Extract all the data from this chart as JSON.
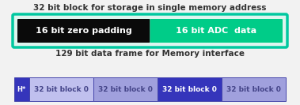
{
  "title1": "32 bit block for storage in single memory address",
  "title2": "129 bit data frame for Memory interface",
  "block1_left_label": "16 bit zero padding",
  "block1_right_label": "16 bit ADC  data",
  "block1_border_color": "#00c8a0",
  "block1_inner_bg": "#ddf5ef",
  "block1_left_color": "#0a0a0a",
  "block1_right_color": "#00cc88",
  "block1_text_color": "#ffffff",
  "row2_cells": [
    "H*",
    "32 bit block 0",
    "32 bit block 0",
    "32 bit block 0",
    "32 bit block 0"
  ],
  "row2_colors": [
    "#3535bb",
    "#c0c0ee",
    "#a0a0dd",
    "#3535bb",
    "#a0a0dd"
  ],
  "row2_text_colors": [
    "#ffffff",
    "#444488",
    "#444488",
    "#ffffff",
    "#444488"
  ],
  "row2_border_color": "#4444aa",
  "title_fontsize": 7.5,
  "cell_fontsize": 6.5,
  "fig_bg": "#f2f2f2",
  "title_color": "#333333"
}
